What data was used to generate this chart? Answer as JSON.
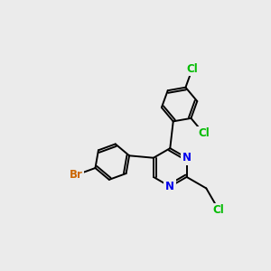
{
  "background_color": "#ebebeb",
  "bond_color": "#000000",
  "atom_colors": {
    "Cl": "#00bb00",
    "Br": "#cc6600",
    "N": "#0000ee"
  },
  "figsize": [
    3.0,
    3.0
  ],
  "dpi": 100
}
